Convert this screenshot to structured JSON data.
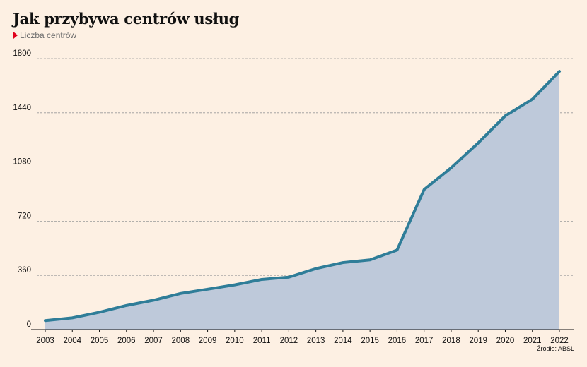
{
  "title": "Jak przybywa centrów usług",
  "subtitle": "Liczba centrów",
  "source": "Źródło: ABSL",
  "colors": {
    "background": "#fdf0e3",
    "line": "#2f7d98",
    "area": "#bec9da",
    "marker": "#e0001b",
    "grid": "#9a9a9a"
  },
  "chart_data": {
    "type": "area",
    "title": "Jak przybywa centrów usług",
    "subtitle": "Liczba centrów",
    "categories": [
      "2003",
      "2004",
      "2005",
      "2006",
      "2007",
      "2008",
      "2009",
      "2010",
      "2011",
      "2012",
      "2013",
      "2014",
      "2015",
      "2016",
      "2017",
      "2018",
      "2019",
      "2020",
      "2021",
      "2022"
    ],
    "series": [
      {
        "values": [
          60,
          78,
          115,
          160,
          195,
          240,
          268,
          297,
          333,
          348,
          405,
          445,
          463,
          528,
          930,
          1075,
          1240,
          1420,
          1530,
          1715
        ]
      }
    ],
    "yticks": [
      0,
      360,
      720,
      1080,
      1440,
      1800
    ],
    "ylim": [
      0,
      1800
    ],
    "xlabel": "",
    "ylabel": "",
    "grid": "horizontal dashed",
    "legend": "none"
  }
}
